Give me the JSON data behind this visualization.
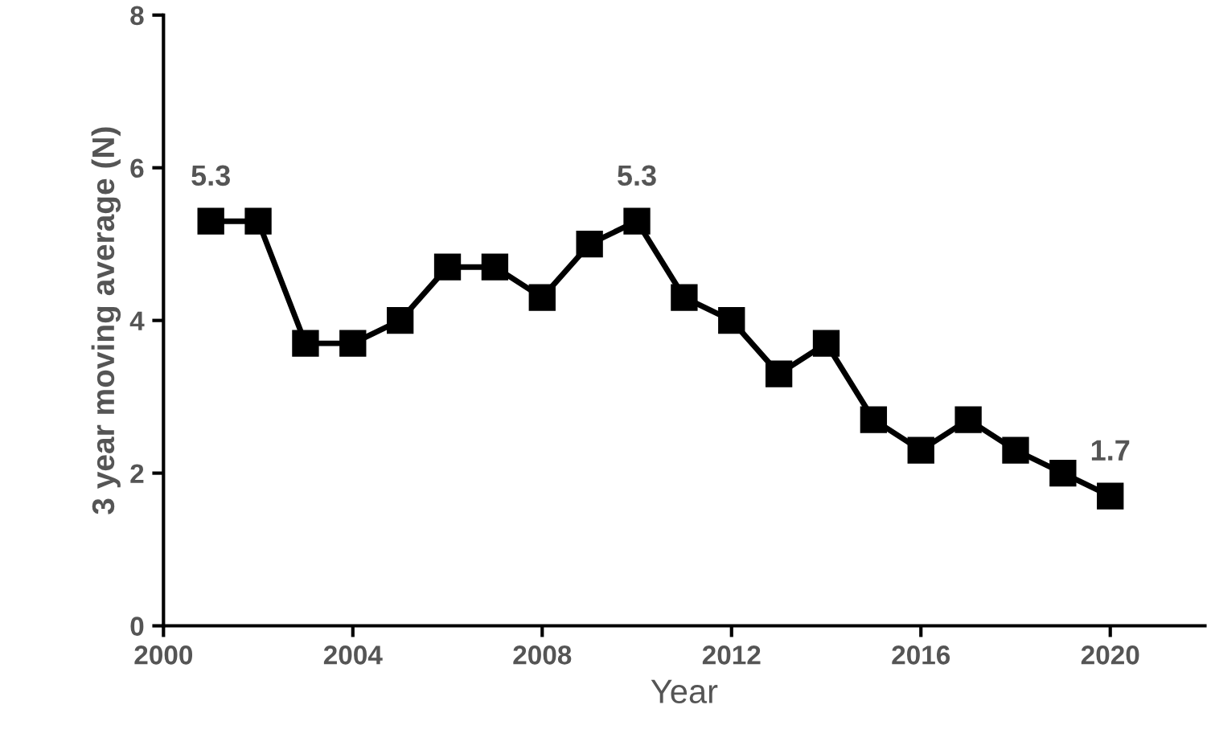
{
  "chart_data": {
    "type": "line",
    "xlabel": "Year",
    "ylabel": "3 year moving average (N)",
    "x": [
      2001,
      2002,
      2003,
      2004,
      2005,
      2006,
      2007,
      2008,
      2009,
      2010,
      2011,
      2012,
      2013,
      2014,
      2015,
      2016,
      2017,
      2018,
      2019,
      2020
    ],
    "series": [
      {
        "color": "#000000",
        "values": [
          5.3,
          5.3,
          3.7,
          3.7,
          4.0,
          4.7,
          4.7,
          4.3,
          5.0,
          5.3,
          4.3,
          4.0,
          3.3,
          3.7,
          2.7,
          2.3,
          2.7,
          2.3,
          2.0,
          1.7
        ]
      }
    ],
    "xlim": [
      2000,
      2022
    ],
    "xticks": [
      2000,
      2004,
      2008,
      2012,
      2016,
      2020
    ],
    "ylim": [
      0,
      8
    ],
    "yticks": [
      0,
      2,
      4,
      6,
      8
    ],
    "annotations": [
      {
        "text": "5.3",
        "x": 2001,
        "y": 5.3
      },
      {
        "text": "5.3",
        "x": 2010,
        "y": 5.3
      },
      {
        "text": "1.7",
        "x": 2020,
        "y": 1.7
      }
    ],
    "marker": "square",
    "line_style": "solid",
    "grid": false,
    "legend": false
  }
}
